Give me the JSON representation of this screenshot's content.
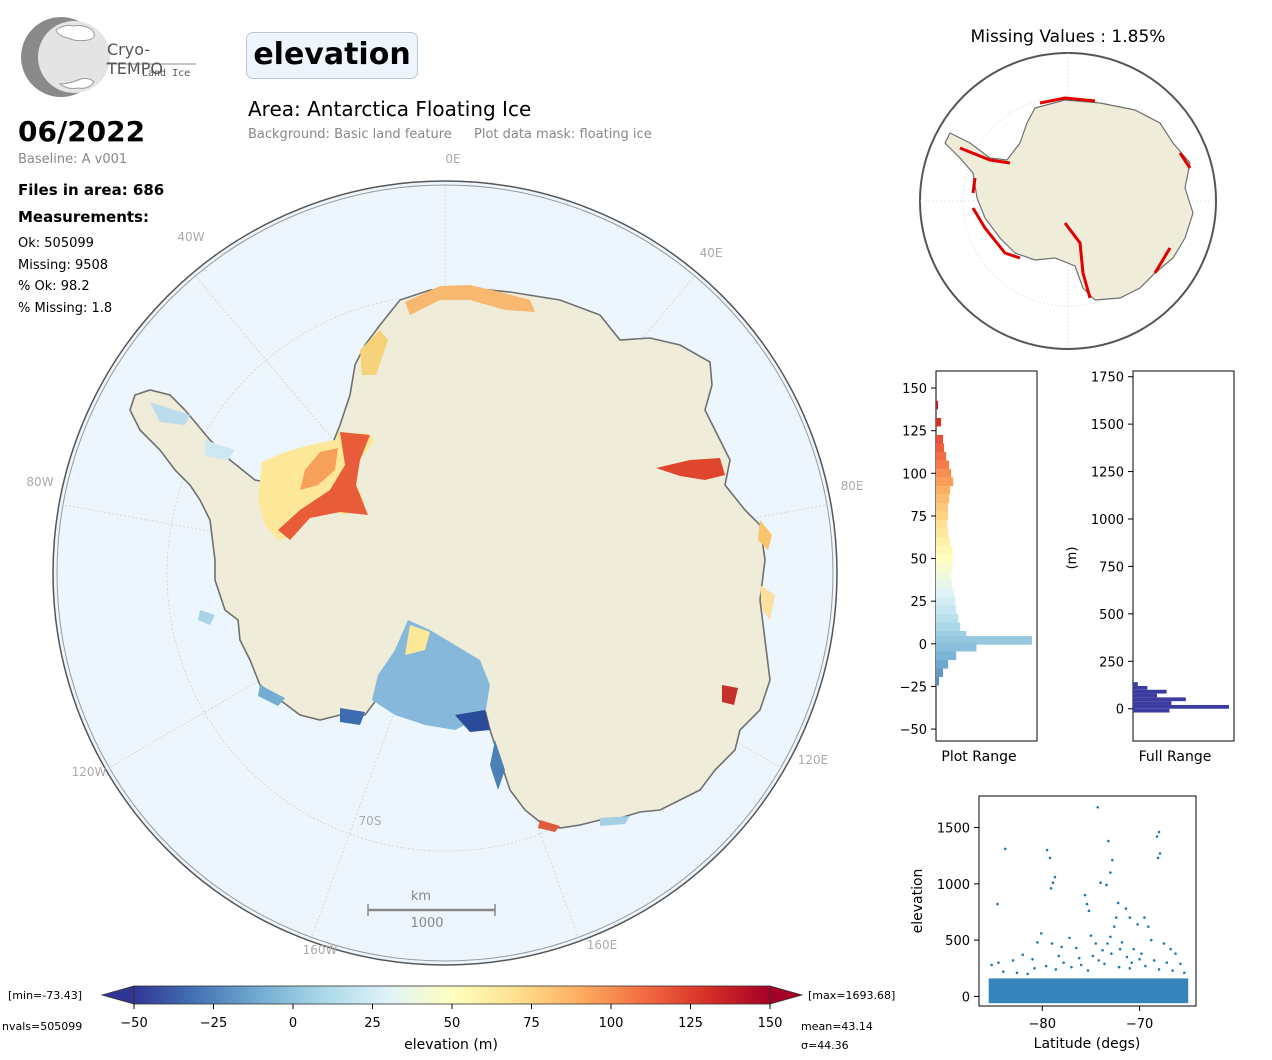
{
  "logo": {
    "name": "Cryo-TEMPO",
    "subtitle": "Land Ice"
  },
  "header": {
    "parameter": "elevation",
    "area_title": "Area: Antarctica Floating Ice",
    "background_note": "Background: Basic land feature",
    "mask_note": "Plot data mask: floating ice"
  },
  "info": {
    "date": "06/2022",
    "baseline": "Baseline: A v001",
    "files": "Files in area: 686",
    "measurements_label": "Measurements:",
    "ok": "Ok: 505099",
    "missing": "Missing: 9508",
    "pct_ok": "% Ok: 98.2",
    "pct_missing": "% Missing: 1.8"
  },
  "main_map": {
    "lon_labels": [
      "0E",
      "40E",
      "80E",
      "120E",
      "160E",
      "160W",
      "120W",
      "80W",
      "40W"
    ],
    "lat_label": "70S",
    "scale_unit": "km",
    "scale_value": "1000",
    "colors": {
      "ocean": "#eef6fd",
      "land": "#efedda",
      "coast": "#707070"
    }
  },
  "inset_map": {
    "title": "Missing Values : 1.85%",
    "missing_color": "#e00000"
  },
  "chart_data": [
    {
      "type": "bar",
      "title": "",
      "xlabel": "Plot Range",
      "ylabel": "",
      "orientation": "horizontal",
      "ylim": [
        -57,
        160
      ],
      "yticks": [
        -50,
        -25,
        0,
        25,
        50,
        75,
        100,
        125,
        150
      ],
      "bins": [
        {
          "y": 140,
          "v": 0.02
        },
        {
          "y": 130,
          "v": 0.05
        },
        {
          "y": 120,
          "v": 0.07
        },
        {
          "y": 115,
          "v": 0.08
        },
        {
          "y": 110,
          "v": 0.1
        },
        {
          "y": 105,
          "v": 0.13
        },
        {
          "y": 100,
          "v": 0.15
        },
        {
          "y": 95,
          "v": 0.17
        },
        {
          "y": 90,
          "v": 0.14
        },
        {
          "y": 85,
          "v": 0.13
        },
        {
          "y": 80,
          "v": 0.12
        },
        {
          "y": 75,
          "v": 0.12
        },
        {
          "y": 70,
          "v": 0.11
        },
        {
          "y": 65,
          "v": 0.12
        },
        {
          "y": 60,
          "v": 0.14
        },
        {
          "y": 55,
          "v": 0.16
        },
        {
          "y": 50,
          "v": 0.17
        },
        {
          "y": 45,
          "v": 0.16
        },
        {
          "y": 40,
          "v": 0.15
        },
        {
          "y": 35,
          "v": 0.16
        },
        {
          "y": 30,
          "v": 0.18
        },
        {
          "y": 25,
          "v": 0.19
        },
        {
          "y": 20,
          "v": 0.2
        },
        {
          "y": 15,
          "v": 0.22
        },
        {
          "y": 10,
          "v": 0.24
        },
        {
          "y": 5,
          "v": 0.3
        },
        {
          "y": 2,
          "v": 0.95
        },
        {
          "y": -2,
          "v": 0.4
        },
        {
          "y": -7,
          "v": 0.2
        },
        {
          "y": -12,
          "v": 0.12
        },
        {
          "y": -17,
          "v": 0.07
        },
        {
          "y": -22,
          "v": 0.03
        }
      ]
    },
    {
      "type": "bar",
      "title": "",
      "xlabel": "Full Range",
      "ylabel": "(m)",
      "orientation": "horizontal",
      "ylim": [
        -170,
        1780
      ],
      "yticks": [
        0,
        250,
        500,
        750,
        1000,
        1250,
        1500,
        1750
      ],
      "bins": [
        {
          "y": 130,
          "v": 0.05
        },
        {
          "y": 110,
          "v": 0.15
        },
        {
          "y": 90,
          "v": 0.35
        },
        {
          "y": 70,
          "v": 0.25
        },
        {
          "y": 50,
          "v": 0.55
        },
        {
          "y": 30,
          "v": 0.4
        },
        {
          "y": 10,
          "v": 1.0
        },
        {
          "y": -10,
          "v": 0.38
        }
      ],
      "bar_color": "#3c3ca0"
    },
    {
      "type": "scatter",
      "title": "",
      "xlabel": "Latitude (degs)",
      "ylabel": "elevation",
      "xlim": [
        -86.5,
        -64.2
      ],
      "ylim": [
        -85,
        1780
      ],
      "xticks": [
        -80,
        -70
      ],
      "yticks": [
        0,
        500,
        1000,
        1500
      ],
      "point_color": "#1f77b4",
      "dense_band": {
        "x": [
          -85.5,
          -65
        ],
        "y": [
          -60,
          160
        ]
      },
      "points": [
        [
          -74.3,
          1680
        ],
        [
          -73.2,
          1380
        ],
        [
          -68,
          1460
        ],
        [
          -68.2,
          1420
        ],
        [
          -67.9,
          1270
        ],
        [
          -68.1,
          1230
        ],
        [
          -83.8,
          1310
        ],
        [
          -79.5,
          1300
        ],
        [
          -79.2,
          1230
        ],
        [
          -78.7,
          1060
        ],
        [
          -78.9,
          1010
        ],
        [
          -79.1,
          960
        ],
        [
          -72.8,
          1210
        ],
        [
          -73.0,
          1100
        ],
        [
          -73.4,
          990
        ],
        [
          -74.0,
          1010
        ],
        [
          -84.6,
          820
        ],
        [
          -75.6,
          900
        ],
        [
          -75.4,
          820
        ],
        [
          -75.2,
          760
        ],
        [
          -72.2,
          830
        ],
        [
          -72.4,
          700
        ],
        [
          -72.6,
          620
        ],
        [
          -71.4,
          780
        ],
        [
          -71.0,
          700
        ],
        [
          -70.2,
          640
        ],
        [
          -69.5,
          700
        ],
        [
          -69.1,
          620
        ],
        [
          -68.8,
          500
        ],
        [
          -80.1,
          560
        ],
        [
          -80.5,
          480
        ],
        [
          -79.0,
          470
        ],
        [
          -78.0,
          440
        ],
        [
          -77.2,
          520
        ],
        [
          -76.5,
          430
        ],
        [
          -75.0,
          540
        ],
        [
          -74.5,
          470
        ],
        [
          -73.8,
          410
        ],
        [
          -73.0,
          530
        ],
        [
          -71.8,
          480
        ],
        [
          -70.6,
          420
        ],
        [
          -69.8,
          380
        ],
        [
          -67.5,
          470
        ],
        [
          -66.8,
          420
        ],
        [
          -66.3,
          380
        ],
        [
          -82.0,
          370
        ],
        [
          -83.0,
          320
        ],
        [
          -84.5,
          300
        ],
        [
          -85.2,
          280
        ],
        [
          -81.0,
          330
        ],
        [
          -78.3,
          360
        ],
        [
          -77.8,
          300
        ],
        [
          -76.2,
          340
        ],
        [
          -74.8,
          360
        ],
        [
          -72.9,
          380
        ],
        [
          -71.3,
          350
        ],
        [
          -70.0,
          330
        ],
        [
          -68.5,
          320
        ],
        [
          -67.2,
          300
        ],
        [
          -65.8,
          290
        ],
        [
          -80.8,
          250
        ],
        [
          -79.6,
          270
        ],
        [
          -78.6,
          240
        ],
        [
          -77.0,
          260
        ],
        [
          -76.0,
          280
        ],
        [
          -75.3,
          230
        ],
        [
          -73.6,
          290
        ],
        [
          -72.1,
          260
        ],
        [
          -71.0,
          250
        ],
        [
          -69.4,
          270
        ],
        [
          -68.0,
          240
        ],
        [
          -66.6,
          230
        ],
        [
          -65.4,
          210
        ],
        [
          -84.0,
          220
        ],
        [
          -82.6,
          210
        ],
        [
          -81.5,
          200
        ],
        [
          -74.2,
          320
        ],
        [
          -70.8,
          300
        ],
        [
          -73.3,
          470
        ],
        [
          -72.0,
          420
        ]
      ]
    }
  ],
  "colorbar": {
    "label": "elevation (m)",
    "ticks": [
      -50,
      -25,
      0,
      25,
      50,
      75,
      100,
      125,
      150
    ],
    "range": [
      -50,
      150
    ],
    "stops": [
      "#313695",
      "#4575b4",
      "#74add1",
      "#abd9e9",
      "#e0f3f8",
      "#ffffbf",
      "#fee090",
      "#fdae61",
      "#f46d43",
      "#d73027",
      "#a50026"
    ],
    "min_label": "[min=-73.43]",
    "max_label": "[max=1693.68]",
    "nvals": "nvals=505099",
    "mean": "mean=43.14",
    "sigma": "σ=44.36"
  }
}
